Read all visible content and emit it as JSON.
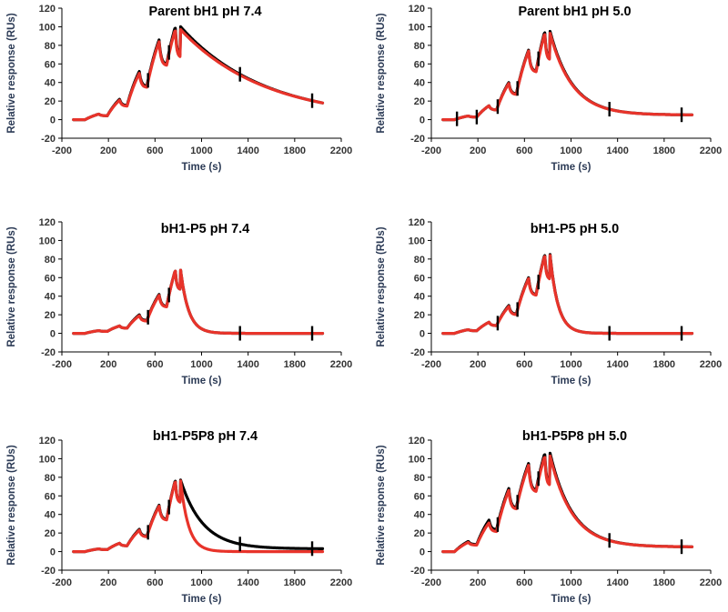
{
  "chart_data": [
    {
      "type": "line",
      "title": "Parent bH1 pH 7.4",
      "xlabel": "Time (s)",
      "ylabel": "Relative response  (RUs)",
      "xlim": [
        -200,
        2200
      ],
      "ylim": [
        -20,
        120
      ],
      "xticks": [
        -200,
        200,
        600,
        1000,
        1400,
        1800,
        2200
      ],
      "yticks": [
        -20,
        0,
        20,
        40,
        60,
        80,
        100,
        120
      ],
      "injection_starts": [
        0,
        190,
        360,
        530,
        700
      ],
      "injection_end": 820,
      "plateaus": [
        6,
        22,
        52,
        86,
        100
      ],
      "fit_peaks": [
        6,
        21,
        50,
        84,
        97
      ],
      "end_value": 18,
      "spikes": [
        540,
        720,
        1330,
        1950
      ],
      "series": [
        {
          "name": "data",
          "color": "#000000"
        },
        {
          "name": "fit",
          "color": "#e8332a"
        }
      ]
    },
    {
      "type": "line",
      "title": "Parent bH1 pH 5.0",
      "xlabel": "Time (s)",
      "ylabel": "Relative response  (RUs)",
      "xlim": [
        -200,
        2200
      ],
      "ylim": [
        -20,
        120
      ],
      "xticks": [
        -200,
        200,
        600,
        1000,
        1400,
        1800,
        2200
      ],
      "yticks": [
        -20,
        0,
        20,
        40,
        60,
        80,
        100,
        120
      ],
      "injection_starts": [
        0,
        190,
        360,
        530,
        700
      ],
      "injection_end": 820,
      "plateaus": [
        4,
        15,
        40,
        75,
        95
      ],
      "fit_peaks": [
        4,
        15,
        39,
        74,
        93
      ],
      "end_value": 5,
      "spikes": [
        20,
        190,
        370,
        540,
        720,
        1330,
        1950
      ],
      "series": [
        {
          "name": "data",
          "color": "#000000"
        },
        {
          "name": "fit",
          "color": "#e8332a"
        }
      ]
    },
    {
      "type": "line",
      "title": "bH1-P5 pH 7.4",
      "xlabel": "Time (s)",
      "ylabel": "Relative response  (RUs)",
      "xlim": [
        -200,
        2200
      ],
      "ylim": [
        -20,
        120
      ],
      "xticks": [
        -200,
        200,
        600,
        1000,
        1400,
        1800,
        2200
      ],
      "yticks": [
        -20,
        0,
        20,
        40,
        60,
        80,
        100,
        120
      ],
      "injection_starts": [
        0,
        190,
        360,
        530,
        700
      ],
      "injection_end": 820,
      "plateaus": [
        3,
        8,
        20,
        42,
        68
      ],
      "fit_peaks": [
        3,
        8,
        19,
        41,
        68
      ],
      "end_value": 0,
      "spikes": [
        540,
        720,
        1330,
        1950
      ],
      "series": [
        {
          "name": "data",
          "color": "#000000"
        },
        {
          "name": "fit",
          "color": "#e8332a"
        }
      ]
    },
    {
      "type": "line",
      "title": "bH1-P5 pH 5.0",
      "xlabel": "Time (s)",
      "ylabel": "Relative response  (RUs)",
      "xlim": [
        -200,
        2200
      ],
      "ylim": [
        -20,
        120
      ],
      "xticks": [
        -200,
        200,
        600,
        1000,
        1400,
        1800,
        2200
      ],
      "yticks": [
        -20,
        0,
        20,
        40,
        60,
        80,
        100,
        120
      ],
      "injection_starts": [
        0,
        190,
        360,
        530,
        700
      ],
      "injection_end": 820,
      "plateaus": [
        4,
        12,
        30,
        60,
        85
      ],
      "fit_peaks": [
        4,
        12,
        29,
        59,
        84
      ],
      "end_value": 0,
      "spikes": [
        370,
        540,
        720,
        1330,
        1950
      ],
      "series": [
        {
          "name": "data",
          "color": "#000000"
        },
        {
          "name": "fit",
          "color": "#e8332a"
        }
      ]
    },
    {
      "type": "line",
      "title": "bH1-P5P8 pH 7.4",
      "xlabel": "Time (s)",
      "ylabel": "Relative response  (RUs)",
      "xlim": [
        -200,
        2200
      ],
      "ylim": [
        -20,
        120
      ],
      "xticks": [
        -200,
        200,
        600,
        1000,
        1400,
        1800,
        2200
      ],
      "yticks": [
        -20,
        0,
        20,
        40,
        60,
        80,
        100,
        120
      ],
      "injection_starts": [
        0,
        190,
        360,
        530,
        700
      ],
      "injection_end": 820,
      "plateaus": [
        3,
        9,
        24,
        50,
        77
      ],
      "fit_peaks": [
        3,
        9,
        23,
        49,
        76
      ],
      "end_value": 3,
      "fit_end_value": 0,
      "spikes": [
        540,
        720,
        1330,
        1950
      ],
      "series": [
        {
          "name": "data",
          "color": "#000000"
        },
        {
          "name": "fit",
          "color": "#e8332a"
        }
      ]
    },
    {
      "type": "line",
      "title": "bH1-P5P8 pH 5.0",
      "xlabel": "Time (s)",
      "ylabel": "Relative response  (RUs)",
      "xlim": [
        -200,
        2200
      ],
      "ylim": [
        -20,
        120
      ],
      "xticks": [
        -200,
        200,
        600,
        1000,
        1400,
        1800,
        2200
      ],
      "yticks": [
        -20,
        0,
        20,
        40,
        60,
        80,
        100,
        120
      ],
      "injection_starts": [
        0,
        190,
        360,
        530,
        700
      ],
      "injection_end": 820,
      "plateaus": [
        11,
        34,
        68,
        95,
        106
      ],
      "fit_peaks": [
        10,
        31,
        66,
        93,
        103
      ],
      "end_value": 5,
      "spikes": [
        370,
        540,
        720,
        1330,
        1950
      ],
      "series": [
        {
          "name": "data",
          "color": "#000000"
        },
        {
          "name": "fit",
          "color": "#e8332a"
        }
      ]
    }
  ]
}
